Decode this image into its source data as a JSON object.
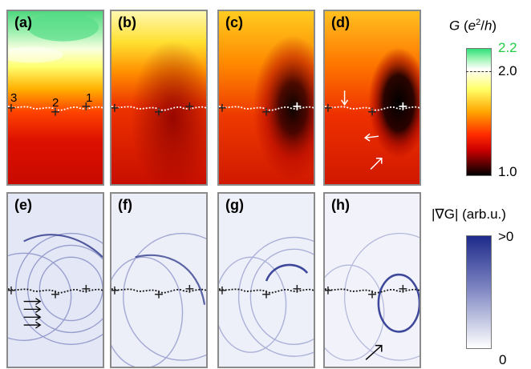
{
  "panels": {
    "a": {
      "label": "(a)",
      "type": "conductance",
      "tip_at_center": false
    },
    "b": {
      "label": "(b)",
      "type": "conductance",
      "tip_at_center": false
    },
    "c": {
      "label": "(c)",
      "type": "conductance",
      "tip_at_center": true
    },
    "d": {
      "label": "(d)",
      "type": "conductance",
      "tip_at_center": true
    },
    "e": {
      "label": "(e)",
      "type": "gradient"
    },
    "f": {
      "label": "(f)",
      "type": "gradient"
    },
    "g": {
      "label": "(g)",
      "type": "gradient"
    },
    "h": {
      "label": "(h)",
      "type": "gradient"
    }
  },
  "point_labels": [
    "3",
    "2",
    "1"
  ],
  "colorbar_top": {
    "title_prefix": "G (e",
    "title_sup": "2",
    "title_suffix": "/h)",
    "tick_max": "2.2",
    "tick_mid": "2.0",
    "tick_min": "1.0",
    "tick_max_color": "#22cc44",
    "colors": [
      "#2ee07a",
      "#ffffff",
      "#ffff66",
      "#ffa500",
      "#ff2a00",
      "#cc0000",
      "#000000"
    ]
  },
  "colorbar_bottom": {
    "title": "|∇G| (arb.u.)",
    "tick_max": ">0",
    "tick_min": "0",
    "colors": [
      "#1e2a8a",
      "#ffffff"
    ]
  }
}
